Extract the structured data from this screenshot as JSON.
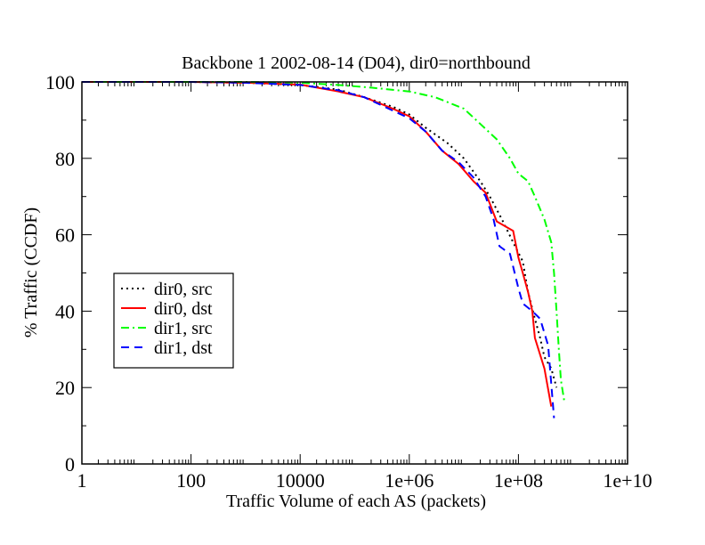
{
  "chart_data": {
    "type": "line",
    "title": "Backbone 1 2002-08-14 (D04), dir0=northbound",
    "xlabel": "Traffic Volume of each AS (packets)",
    "ylabel": "% Traffic (CCDF)",
    "xscale": "log",
    "xlim": [
      1,
      10000000000
    ],
    "ylim": [
      0,
      100
    ],
    "x_tick_labels": [
      "1",
      "100",
      "10000",
      "1e+06",
      "1e+08",
      "1e+10"
    ],
    "x_tick_values": [
      1,
      100,
      10000,
      1000000,
      100000000,
      10000000000
    ],
    "y_tick_labels": [
      "0",
      "20",
      "40",
      "60",
      "80",
      "100"
    ],
    "y_tick_values": [
      0,
      20,
      40,
      60,
      80,
      100
    ],
    "legend_position": "lower-left",
    "series": [
      {
        "name": "dir0, src",
        "color": "#000000",
        "dash": "dotted",
        "points": [
          [
            1,
            100
          ],
          [
            100,
            100
          ],
          [
            1000,
            99.8
          ],
          [
            10000,
            99.2
          ],
          [
            50000,
            98
          ],
          [
            150000,
            96
          ],
          [
            500000,
            93.5
          ],
          [
            1000000,
            91.5
          ],
          [
            2000000,
            88
          ],
          [
            5000000,
            84
          ],
          [
            10000000,
            80
          ],
          [
            20000000,
            74
          ],
          [
            30000000,
            70
          ],
          [
            50000000,
            64
          ],
          [
            80000000,
            58
          ],
          [
            120000000,
            53
          ],
          [
            150000000,
            45
          ],
          [
            200000000,
            38
          ],
          [
            250000000,
            33
          ],
          [
            300000000,
            28
          ],
          [
            400000000,
            25
          ],
          [
            500000000,
            20
          ]
        ]
      },
      {
        "name": "dir0, dst",
        "color": "#ff0000",
        "dash": "solid",
        "points": [
          [
            1,
            100
          ],
          [
            100,
            100
          ],
          [
            1000,
            99.8
          ],
          [
            10000,
            99.3
          ],
          [
            50000,
            97.5
          ],
          [
            150000,
            96
          ],
          [
            500000,
            93
          ],
          [
            1000000,
            91
          ],
          [
            2000000,
            87
          ],
          [
            4000000,
            82
          ],
          [
            8000000,
            78.5
          ],
          [
            15000000,
            74
          ],
          [
            25000000,
            71
          ],
          [
            40000000,
            63.5
          ],
          [
            80000000,
            61
          ],
          [
            100000000,
            54
          ],
          [
            120000000,
            50
          ],
          [
            150000000,
            45
          ],
          [
            180000000,
            40
          ],
          [
            200000000,
            33
          ],
          [
            300000000,
            25
          ],
          [
            400000000,
            15
          ]
        ]
      },
      {
        "name": "dir1, src",
        "color": "#00ff00",
        "dash": "dashdot",
        "points": [
          [
            1,
            100
          ],
          [
            1000,
            100
          ],
          [
            10000,
            99.8
          ],
          [
            50000,
            99.2
          ],
          [
            200000,
            98.5
          ],
          [
            1000000,
            97.5
          ],
          [
            3000000,
            96
          ],
          [
            10000000,
            93
          ],
          [
            20000000,
            89
          ],
          [
            40000000,
            85
          ],
          [
            70000000,
            80
          ],
          [
            100000000,
            76
          ],
          [
            150000000,
            74
          ],
          [
            200000000,
            70
          ],
          [
            300000000,
            64
          ],
          [
            400000000,
            58
          ],
          [
            450000000,
            50
          ],
          [
            500000000,
            40
          ],
          [
            550000000,
            30
          ],
          [
            600000000,
            22
          ],
          [
            700000000,
            16
          ]
        ]
      },
      {
        "name": "dir1, dst",
        "color": "#0000ff",
        "dash": "dashed",
        "points": [
          [
            1,
            100
          ],
          [
            100,
            100
          ],
          [
            1000,
            99.8
          ],
          [
            10000,
            99.2
          ],
          [
            50000,
            97.8
          ],
          [
            150000,
            96
          ],
          [
            500000,
            92.5
          ],
          [
            1000000,
            90.5
          ],
          [
            2000000,
            87
          ],
          [
            4000000,
            82
          ],
          [
            8000000,
            79
          ],
          [
            15000000,
            75
          ],
          [
            25000000,
            70
          ],
          [
            35000000,
            64
          ],
          [
            45000000,
            57
          ],
          [
            70000000,
            55
          ],
          [
            100000000,
            46
          ],
          [
            120000000,
            42
          ],
          [
            180000000,
            40
          ],
          [
            250000000,
            38
          ],
          [
            350000000,
            31
          ],
          [
            450000000,
            12
          ]
        ]
      }
    ]
  }
}
